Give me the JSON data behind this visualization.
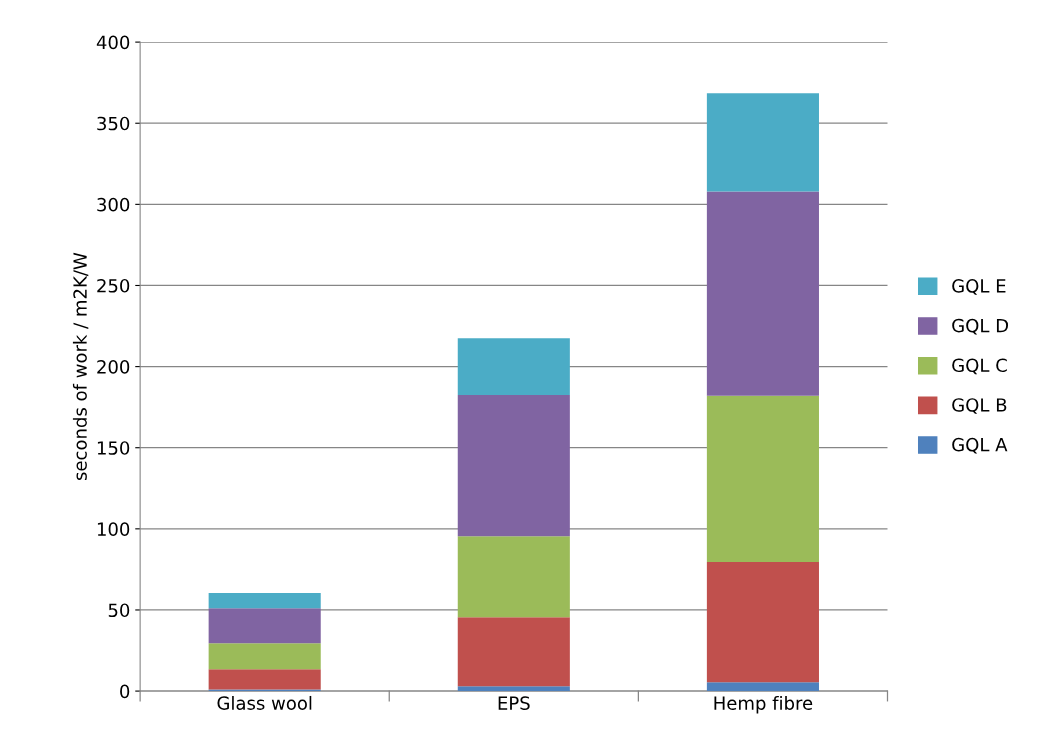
{
  "chart_data": {
    "type": "bar",
    "stacked": true,
    "ylabel": "seconds of work / m2K/W",
    "categories": [
      "Glass wool",
      "EPS",
      "Hemp fibre"
    ],
    "series": [
      {
        "name": "GQL A",
        "color": "#4f81bd",
        "values": [
          1,
          3,
          5.5
        ]
      },
      {
        "name": "GQL B",
        "color": "#c0504d",
        "values": [
          12.5,
          42.5,
          74
        ]
      },
      {
        "name": "GQL C",
        "color": "#9bbb59",
        "values": [
          16,
          50,
          102.5
        ]
      },
      {
        "name": "GQL D",
        "color": "#8064a2",
        "values": [
          21.5,
          87,
          126
        ]
      },
      {
        "name": "GQL E",
        "color": "#4bacc6",
        "values": [
          9.5,
          35,
          60.5
        ]
      }
    ],
    "ylim": [
      0,
      400
    ],
    "yticks": [
      0,
      50,
      100,
      150,
      200,
      250,
      300,
      350,
      400
    ],
    "grid": "y",
    "legend": "right"
  }
}
